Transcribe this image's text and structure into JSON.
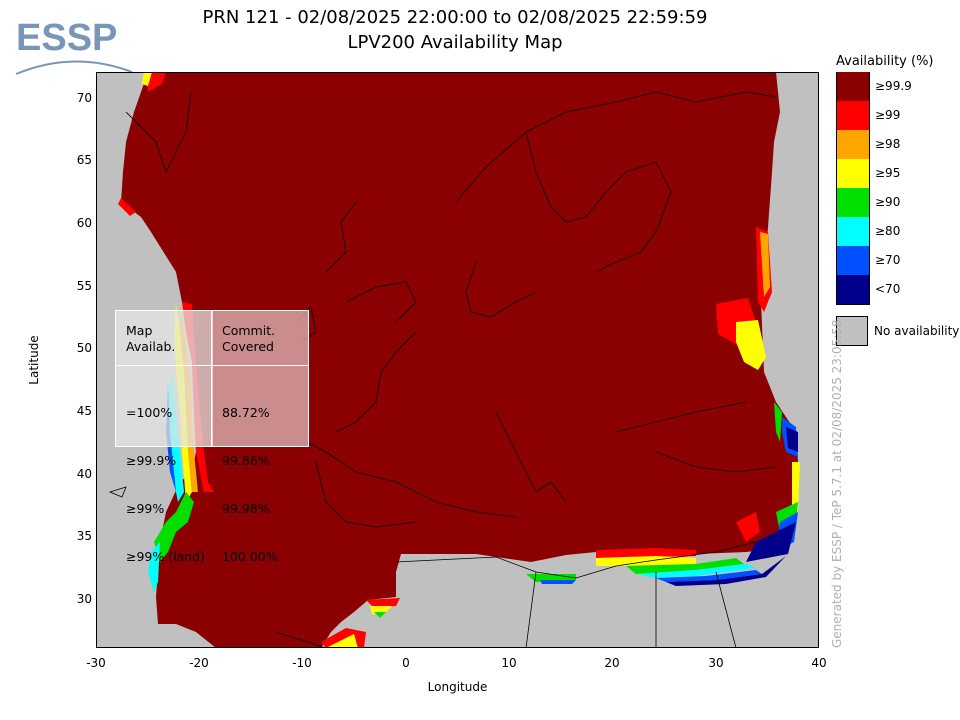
{
  "header": {
    "title": "PRN 121 - 02/08/2025 22:00:00 to 02/08/2025 22:59:59",
    "subtitle": "LPV200 Availability Map"
  },
  "logo": {
    "text": "ESSP"
  },
  "map": {
    "xlabel": "Longitude",
    "ylabel": "Latitude",
    "x_ticks": [
      "-30",
      "-20",
      "-10",
      "0",
      "10",
      "20",
      "30",
      "40"
    ],
    "y_ticks": [
      "70",
      "65",
      "60",
      "55",
      "50",
      "45",
      "40",
      "35",
      "30"
    ],
    "xlim": [
      -30,
      40
    ],
    "ylim": [
      26,
      72
    ],
    "no_data_color": "#c0c0c0",
    "main_color": "#8b0000"
  },
  "legend": {
    "title": "Availability (%)",
    "items": [
      {
        "label": "≥99.9",
        "color": "#8b0000"
      },
      {
        "label": "≥99",
        "color": "#ff0000"
      },
      {
        "label": "≥98",
        "color": "#ffa500"
      },
      {
        "label": "≥95",
        "color": "#ffff00"
      },
      {
        "label": "≥90",
        "color": "#00e000"
      },
      {
        "label": "≥80",
        "color": "#00ffff"
      },
      {
        "label": "≥70",
        "color": "#0050ff"
      },
      {
        "label": "<70",
        "color": "#00008b"
      }
    ],
    "no_availability_label": "No availability"
  },
  "stats": {
    "col1_header": "Map\nAvailab.",
    "col2_header": "Commit.\nCovered",
    "rows": [
      {
        "map": "=100%",
        "covered": "88.72%"
      },
      {
        "map": "≥99.9%",
        "covered": "99.86%"
      },
      {
        "map": "≥99%",
        "covered": "99.98%"
      },
      {
        "map": "≥99% (land)",
        "covered": "100.00%"
      }
    ]
  },
  "footer": {
    "generated_by": "Generated by ESSP / TeP 5.7.1 at 02/08/2025 23:05:58"
  }
}
